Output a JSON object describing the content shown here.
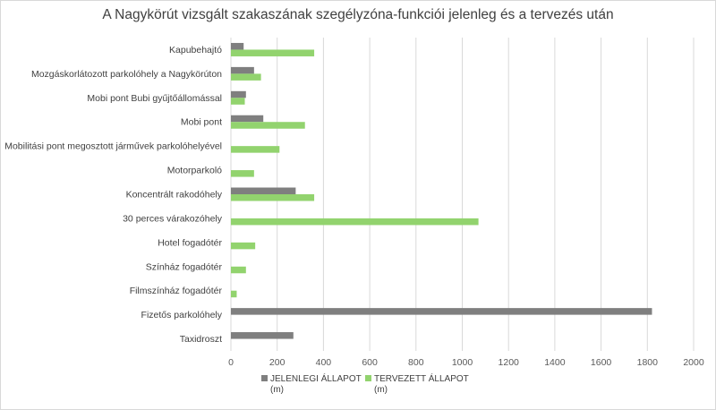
{
  "chart_data": {
    "type": "bar",
    "orientation": "horizontal",
    "title": "A Nagykörút vizsgált szakaszának szegélyzóna-funkciói jelenleg és a tervezés után",
    "categories": [
      "Kapubehajtó",
      "Mozgáskorlátozott parkolóhely a Nagykörúton",
      "Mobi pont Bubi gyűjtőállomással",
      "Mobi pont",
      "Mobilitási pont megosztott járművek parkolóhelyével",
      "Motorparkoló",
      "Koncentrált rakodóhely",
      "30 perces várakozóhely",
      "Hotel fogadótér",
      "Színház fogadótér",
      "Filmszínház fogadótér",
      "Fizetős parkolóhely",
      "Taxidroszt"
    ],
    "series": [
      {
        "name_line1": "JELENLEGI ÁLLAPOT",
        "name_line2": "(m)",
        "color": "#7f7f7f",
        "values": [
          55,
          100,
          65,
          140,
          0,
          0,
          280,
          0,
          0,
          0,
          0,
          1820,
          270
        ]
      },
      {
        "name_line1": "TERVEZETT ÁLLAPOT",
        "name_line2": "(m)",
        "color": "#92d36e",
        "values": [
          360,
          130,
          60,
          320,
          210,
          100,
          360,
          1070,
          105,
          65,
          25,
          0,
          0
        ]
      }
    ],
    "xlim": [
      0,
      2000
    ],
    "xticks": [
      "0",
      "200",
      "400",
      "600",
      "800",
      "1000",
      "1200",
      "1400",
      "1600",
      "1800",
      "2000"
    ],
    "grid": true,
    "legend_position": "bottom"
  }
}
